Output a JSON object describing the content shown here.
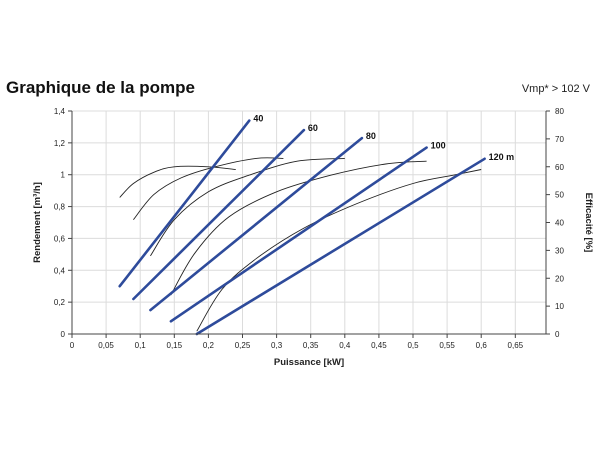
{
  "header": {
    "title": "Graphique de la pompe",
    "subtitle": "Vmp* > 102 V"
  },
  "chart_data": {
    "type": "line",
    "xlabel": "Puissance [kW]",
    "ylabel_left": "Rendement [m³/h]",
    "ylabel_right": "Efficacité [%]",
    "xlim": [
      0,
      0.695
    ],
    "ylim_left": [
      0,
      1.4
    ],
    "ylim_right": [
      0,
      80
    ],
    "x_ticks": [
      0,
      0.05,
      0.1,
      0.15,
      0.2,
      0.25,
      0.3,
      0.35,
      0.4,
      0.45,
      0.5,
      0.55,
      0.6,
      0.65
    ],
    "x_tick_labels": [
      "0",
      "0,05",
      "0,1",
      "0,15",
      "0,2",
      "0,25",
      "0,3",
      "0,35",
      "0,4",
      "0,45",
      "0,5",
      "0,55",
      "0,6",
      "0,65"
    ],
    "y_left_ticks": [
      0,
      0.2,
      0.4,
      0.6,
      0.8,
      1,
      1.2,
      1.4
    ],
    "y_left_tick_labels": [
      "0",
      "0,2",
      "0,4",
      "0,6",
      "0,8",
      "1",
      "1,2",
      "1,4"
    ],
    "y_right_ticks": [
      0,
      10,
      20,
      30,
      40,
      50,
      60,
      70,
      80
    ],
    "y_right_tick_labels": [
      "0",
      "10",
      "20",
      "30",
      "40",
      "50",
      "60",
      "70",
      "80"
    ],
    "grid": true,
    "flow_series": [
      {
        "name": "40",
        "axis": "left",
        "color": "#2e4b9b",
        "points": [
          [
            0.07,
            0.3
          ],
          [
            0.26,
            1.34
          ]
        ]
      },
      {
        "name": "60",
        "axis": "left",
        "color": "#2e4b9b",
        "points": [
          [
            0.09,
            0.22
          ],
          [
            0.34,
            1.28
          ]
        ]
      },
      {
        "name": "80",
        "axis": "left",
        "color": "#2e4b9b",
        "points": [
          [
            0.115,
            0.15
          ],
          [
            0.425,
            1.23
          ]
        ]
      },
      {
        "name": "100",
        "axis": "left",
        "color": "#2e4b9b",
        "points": [
          [
            0.145,
            0.08
          ],
          [
            0.52,
            1.17
          ]
        ]
      },
      {
        "name": "120 m",
        "axis": "left",
        "color": "#2e4b9b",
        "points": [
          [
            0.183,
            0.0
          ],
          [
            0.605,
            1.1
          ]
        ]
      }
    ],
    "efficiency_series": [
      {
        "name": "40",
        "axis": "right",
        "color": "#222222",
        "points": [
          [
            0.07,
            49
          ],
          [
            0.09,
            54
          ],
          [
            0.12,
            58
          ],
          [
            0.15,
            60
          ],
          [
            0.2,
            60
          ],
          [
            0.24,
            59
          ]
        ]
      },
      {
        "name": "60",
        "axis": "right",
        "color": "#222222",
        "points": [
          [
            0.09,
            41
          ],
          [
            0.12,
            50
          ],
          [
            0.16,
            56
          ],
          [
            0.21,
            60
          ],
          [
            0.27,
            63
          ],
          [
            0.31,
            63
          ]
        ]
      },
      {
        "name": "80",
        "axis": "right",
        "color": "#222222",
        "points": [
          [
            0.115,
            28
          ],
          [
            0.15,
            41
          ],
          [
            0.2,
            51
          ],
          [
            0.26,
            57
          ],
          [
            0.33,
            62
          ],
          [
            0.4,
            63
          ]
        ]
      },
      {
        "name": "100",
        "axis": "right",
        "color": "#222222",
        "points": [
          [
            0.145,
            14
          ],
          [
            0.18,
            29
          ],
          [
            0.23,
            42
          ],
          [
            0.3,
            51
          ],
          [
            0.38,
            57
          ],
          [
            0.46,
            61
          ],
          [
            0.52,
            62
          ]
        ]
      },
      {
        "name": "120 m",
        "axis": "right",
        "color": "#222222",
        "points": [
          [
            0.183,
            1
          ],
          [
            0.22,
            16
          ],
          [
            0.27,
            27
          ],
          [
            0.34,
            38
          ],
          [
            0.42,
            47
          ],
          [
            0.5,
            54
          ],
          [
            0.56,
            57
          ],
          [
            0.6,
            59
          ]
        ]
      }
    ]
  }
}
